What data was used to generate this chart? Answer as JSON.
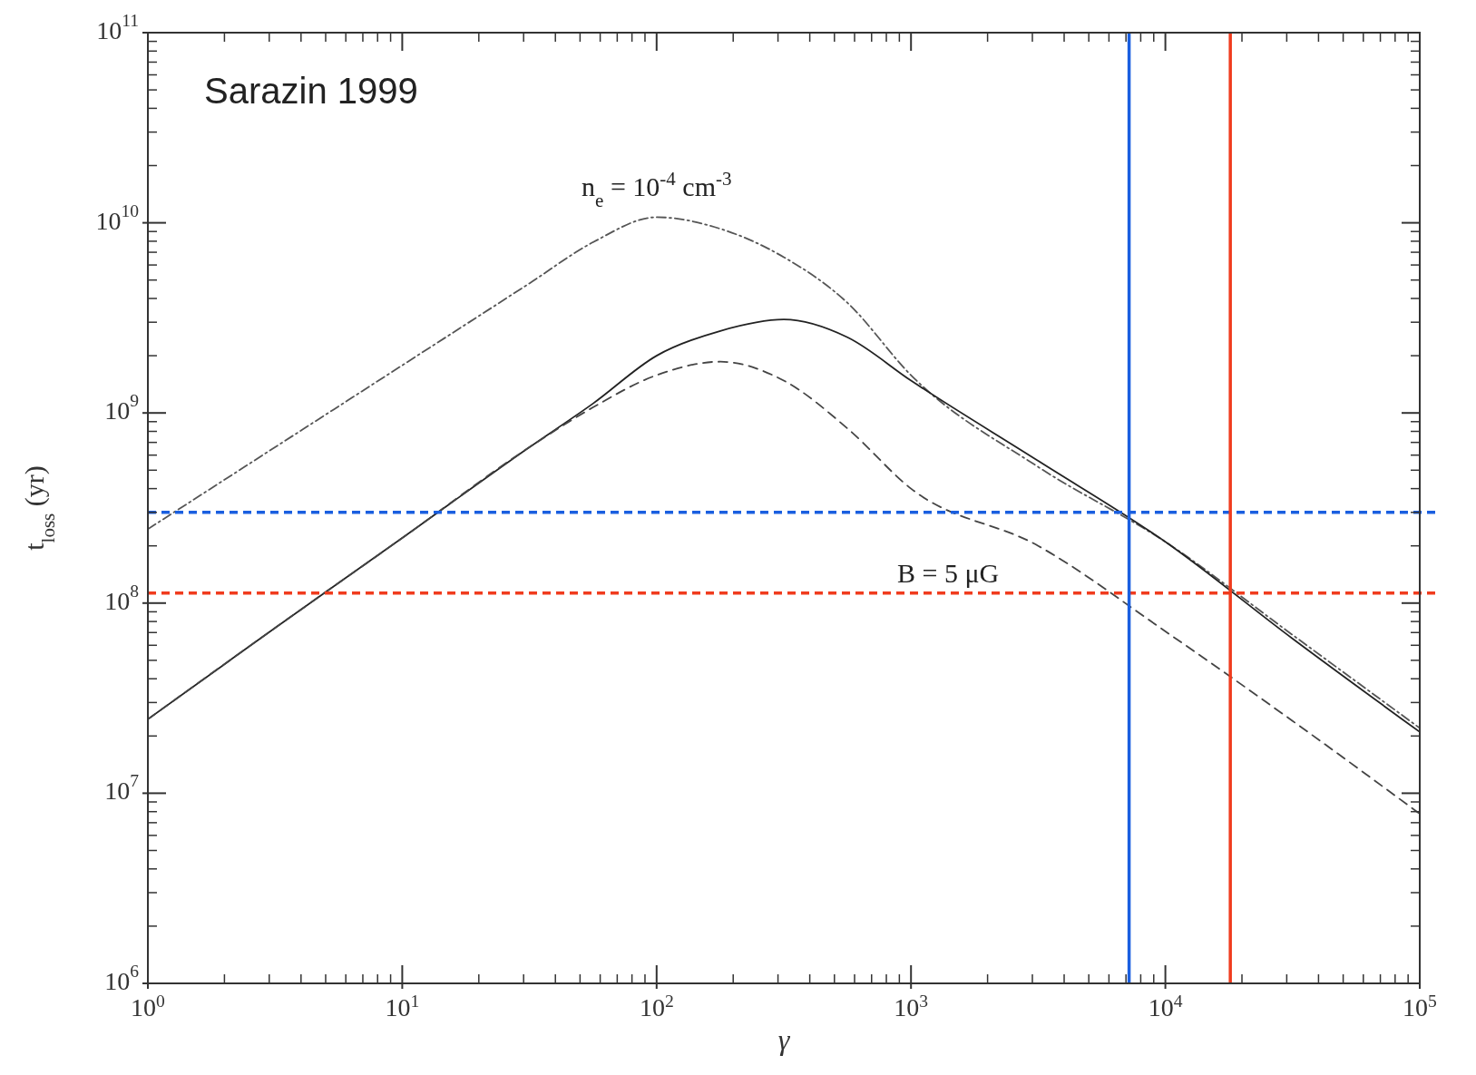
{
  "chart_data": {
    "type": "line",
    "xlabel": "γ",
    "ylabel": "t$_{loss}$ (yr)",
    "log": "xy",
    "xlim": [
      1,
      100000
    ],
    "ylim": [
      1000000,
      100000000000
    ],
    "xticks": [
      {
        "value": 1,
        "label": "10$^{0}$"
      },
      {
        "value": 10,
        "label": "10$^{1}$"
      },
      {
        "value": 100,
        "label": "10$^{2}$"
      },
      {
        "value": 1000,
        "label": "10$^{3}$"
      },
      {
        "value": 10000,
        "label": "10$^{4}$"
      },
      {
        "value": 100000,
        "label": "10$^{5}$"
      }
    ],
    "yticks": [
      {
        "value": 1000000,
        "label": "10$^{6}$"
      },
      {
        "value": 10000000,
        "label": "10$^{7}$"
      },
      {
        "value": 100000000,
        "label": "10$^{8}$"
      },
      {
        "value": 1000000000,
        "label": "10$^{9}$"
      },
      {
        "value": 10000000000,
        "label": "10$^{10}$"
      },
      {
        "value": 100000000000,
        "label": "10$^{11}$"
      }
    ],
    "x": [
      1,
      3.16,
      10,
      31.6,
      56.2,
      100,
      178,
      316,
      562,
      1000,
      3162,
      10000,
      31623,
      100000
    ],
    "series": [
      {
        "color": "#555555",
        "line_style": "dotted",
        "values": [
          245000000,
          660000000,
          1780000000,
          4800000000,
          7900000000,
          10700000000,
          9300000000,
          6600000000,
          3800000000,
          1580000000,
          520000000,
          210000000,
          68000000,
          22000000
        ]
      },
      {
        "color": "#222222",
        "line_style": "solid",
        "values": [
          24500000,
          74000000,
          220000000,
          660000000,
          1120000000,
          2000000000,
          2700000000,
          3100000000,
          2500000000,
          1480000000,
          560000000,
          210000000,
          65000000,
          21000000
        ]
      },
      {
        "color": "#444444",
        "line_style": "dashed",
        "values": [
          24500000,
          74000000,
          220000000,
          660000000,
          1070000000,
          1580000000,
          1860000000,
          1480000000,
          830000000,
          400000000,
          200000000,
          71000000,
          24000000,
          7800000
        ]
      }
    ],
    "ref_lines": [
      {
        "axis": "y",
        "value": 300000000,
        "color": "#1a5fe0",
        "line_style": "dashed"
      },
      {
        "axis": "y",
        "value": 113000000,
        "color": "#f03c1e",
        "line_style": "dashed"
      },
      {
        "axis": "x",
        "value": 7200,
        "color": "#1a5fe0",
        "line_style": "solid"
      },
      {
        "axis": "x",
        "value": 18000,
        "color": "#f03c1e",
        "line_style": "solid"
      }
    ],
    "annotations": [
      "Sarazin 1999",
      "n$_{e}$ = 10$^{-4}$ cm$^{-3}$",
      "B = 5 μG"
    ]
  }
}
